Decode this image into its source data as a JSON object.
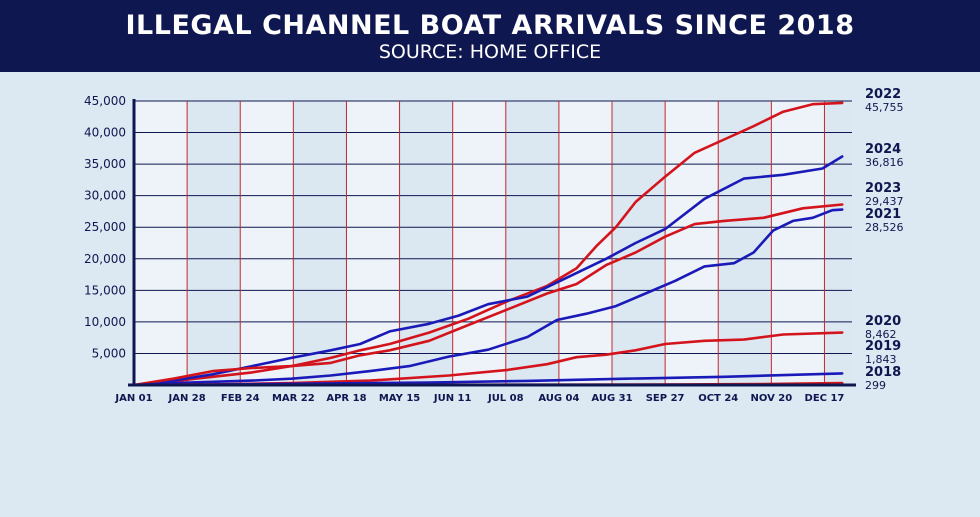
{
  "header": {
    "title": "ILLEGAL CHANNEL BOAT ARRIVALS SINCE 2018",
    "subtitle": "SOURCE: HOME OFFICE"
  },
  "chart_data": {
    "type": "line",
    "title": "ILLEGAL CHANNEL BOAT ARRIVALS SINCE 2018",
    "subtitle": "SOURCE: HOME OFFICE",
    "xlabel": "",
    "ylabel": "",
    "x_ticks": [
      {
        "label": "JAN 01",
        "day": 0
      },
      {
        "label": "JAN 28",
        "day": 27
      },
      {
        "label": "FEB 24",
        "day": 54
      },
      {
        "label": "MAR 22",
        "day": 81
      },
      {
        "label": "APR 18",
        "day": 108
      },
      {
        "label": "MAY 15",
        "day": 135
      },
      {
        "label": "JUN 11",
        "day": 162
      },
      {
        "label": "JUL 08",
        "day": 189
      },
      {
        "label": "AUG 04",
        "day": 216
      },
      {
        "label": "AUG 31",
        "day": 243
      },
      {
        "label": "SEP 27",
        "day": 270
      },
      {
        "label": "OCT 24",
        "day": 297
      },
      {
        "label": "NOV 20",
        "day": 324
      },
      {
        "label": "DEC 17",
        "day": 351
      }
    ],
    "y_ticks": [
      {
        "label": "5,000",
        "value": 5000
      },
      {
        "label": "10,000",
        "value": 10000
      },
      {
        "label": "15,000",
        "value": 15000
      },
      {
        "label": "20,000",
        "value": 20000
      },
      {
        "label": "25,000",
        "value": 25000
      },
      {
        "label": "30,000",
        "value": 30000
      },
      {
        "label": "35,000",
        "value": 35000
      },
      {
        "label": "40,000",
        "value": 40000
      },
      {
        "label": "45,000",
        "value": 45000
      }
    ],
    "xlim": [
      0,
      365
    ],
    "ylim": [
      0,
      45000
    ],
    "grid": true,
    "colors": {
      "red": "#d4141c",
      "blue": "#1a1ab8",
      "axis": "#0f1750",
      "grid_v": "#c0282e",
      "grid_h": "#0f1750",
      "band_light": "#eef3f9",
      "band_dark": "#dce8f1"
    },
    "series": [
      {
        "name": "2022",
        "total": "45,755",
        "color": "#d4141c",
        "x": [
          0,
          20,
          40,
          60,
          80,
          100,
          115,
          130,
          150,
          170,
          190,
          210,
          225,
          235,
          245,
          255,
          270,
          285,
          300,
          315,
          330,
          345,
          360
        ],
        "y": [
          0,
          600,
          1300,
          2000,
          3000,
          4300,
          5500,
          6500,
          8300,
          10500,
          13300,
          15700,
          18500,
          22000,
          25000,
          29000,
          33000,
          36800,
          38900,
          41000,
          43300,
          44500,
          44700
        ]
      },
      {
        "name": "2024",
        "total": "36,816",
        "color": "#1a1ab8",
        "x": [
          0,
          20,
          40,
          60,
          80,
          100,
          115,
          130,
          150,
          165,
          180,
          200,
          220,
          240,
          255,
          270,
          290,
          310,
          330,
          350,
          360
        ],
        "y": [
          0,
          700,
          1700,
          3000,
          4300,
          5500,
          6500,
          8500,
          9700,
          11000,
          12800,
          14000,
          17000,
          20000,
          22500,
          24700,
          29500,
          32700,
          33300,
          34300,
          36200
        ]
      },
      {
        "name": "2023",
        "total": "29,437",
        "color": "#d4141c",
        "x": [
          0,
          20,
          40,
          60,
          80,
          100,
          115,
          130,
          150,
          170,
          190,
          210,
          225,
          240,
          255,
          270,
          285,
          300,
          320,
          340,
          360
        ],
        "y": [
          0,
          1000,
          2200,
          2700,
          3000,
          3500,
          4700,
          5500,
          7000,
          9500,
          12000,
          14500,
          16000,
          19000,
          21000,
          23500,
          25500,
          26000,
          26500,
          28000,
          28600
        ]
      },
      {
        "name": "2021",
        "total": "28,526",
        "color": "#1a1ab8",
        "x": [
          0,
          20,
          40,
          60,
          80,
          100,
          120,
          140,
          160,
          180,
          200,
          215,
          230,
          245,
          260,
          275,
          290,
          305,
          315,
          325,
          335,
          345,
          355,
          360
        ],
        "y": [
          0,
          300,
          500,
          700,
          1000,
          1500,
          2200,
          3000,
          4500,
          5600,
          7600,
          10300,
          11300,
          12500,
          14500,
          16500,
          18800,
          19300,
          21000,
          24500,
          26000,
          26500,
          27700,
          27800
        ]
      },
      {
        "name": "2020",
        "total": "8,462",
        "color": "#d4141c",
        "x": [
          0,
          40,
          80,
          120,
          160,
          190,
          210,
          225,
          240,
          255,
          270,
          290,
          310,
          330,
          360
        ],
        "y": [
          0,
          100,
          300,
          700,
          1500,
          2400,
          3300,
          4400,
          4800,
          5500,
          6500,
          7000,
          7200,
          8000,
          8300
        ]
      },
      {
        "name": "2019",
        "total": "1,843",
        "color": "#1a1ab8",
        "x": [
          0,
          50,
          100,
          150,
          200,
          250,
          300,
          360
        ],
        "y": [
          0,
          100,
          250,
          400,
          650,
          1000,
          1300,
          1843
        ]
      },
      {
        "name": "2018",
        "total": "299",
        "color": "#d4141c",
        "x": [
          0,
          100,
          200,
          280,
          320,
          360
        ],
        "y": [
          0,
          15,
          45,
          100,
          150,
          299
        ]
      }
    ]
  }
}
